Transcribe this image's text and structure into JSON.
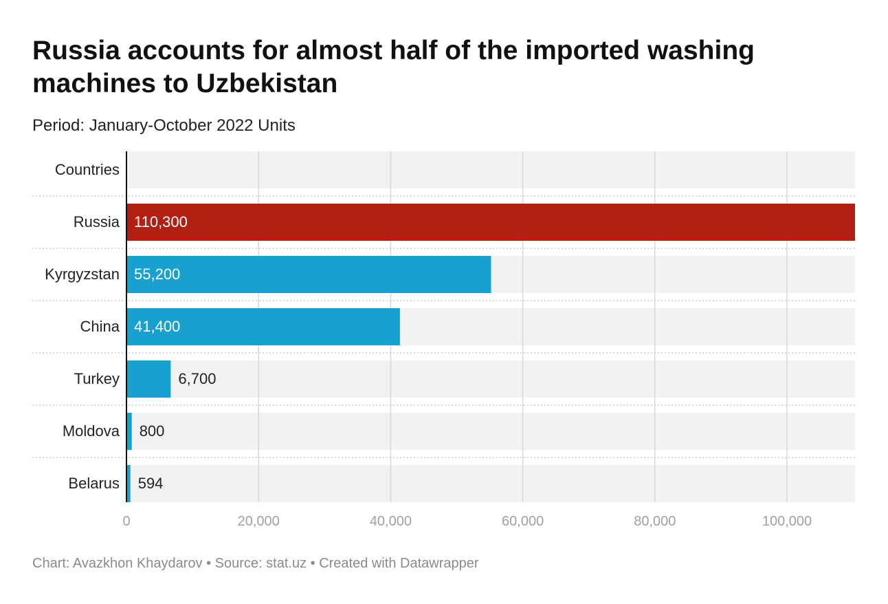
{
  "header": {
    "title": "Russia accounts for almost half of the imported washing machines to Uzbekistan",
    "subtitle": "Period: January-October 2022 Units"
  },
  "chart_data": {
    "type": "bar",
    "orientation": "horizontal",
    "column_header": "Countries",
    "categories": [
      "Russia",
      "Kyrgyzstan",
      "China",
      "Turkey",
      "Moldova",
      "Belarus"
    ],
    "values": [
      110300,
      55200,
      41400,
      6700,
      800,
      594
    ],
    "value_labels": [
      "110,300",
      "55,200",
      "41,400",
      "6,700",
      "800",
      "594"
    ],
    "bar_colors": [
      "#b41f14",
      "#18a1cf",
      "#18a1cf",
      "#18a1cf",
      "#18a1cf",
      "#18a1cf"
    ],
    "xlim": [
      0,
      110300
    ],
    "x_ticks": [
      0,
      20000,
      40000,
      60000,
      80000,
      100000
    ],
    "x_tick_labels": [
      "0",
      "20,000",
      "40,000",
      "60,000",
      "80,000",
      "100,000"
    ],
    "grid": true,
    "background_color": "#f2f2f2"
  },
  "footer": {
    "credit": "Chart: Avazkhon Khaydarov • Source: stat.uz • Created with Datawrapper"
  }
}
